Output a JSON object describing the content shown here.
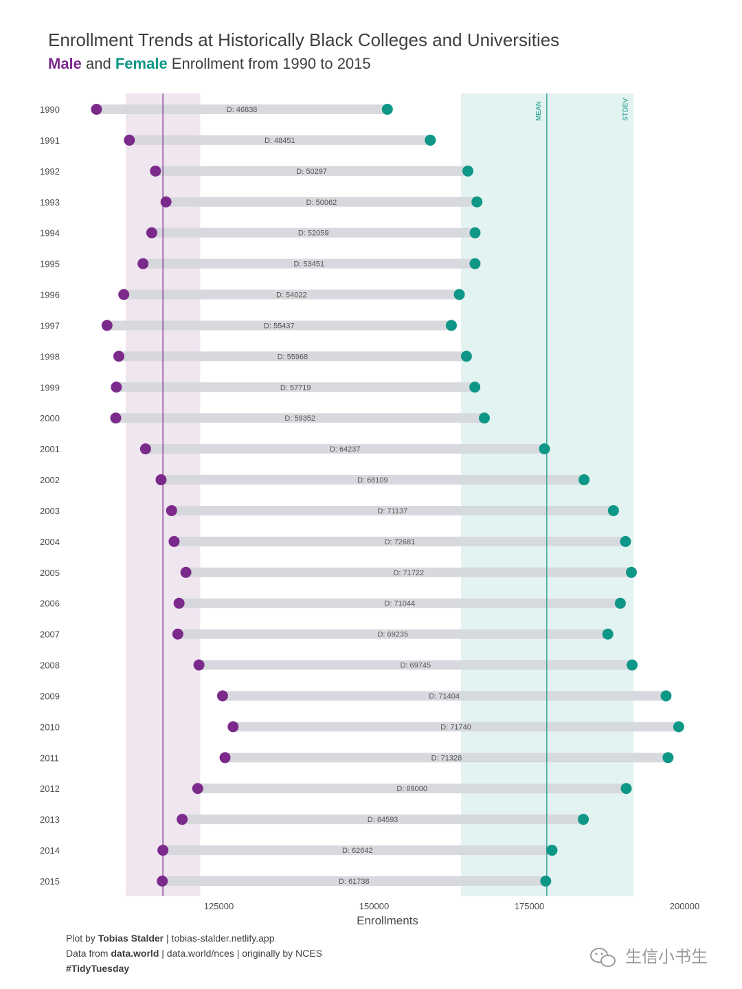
{
  "title": "Enrollment Trends at Historically Black Colleges and Universities",
  "subtitle": {
    "male_word": "Male",
    "and_word": " and ",
    "female_word": "Female",
    "rest": " Enrollment from 1990 to 2015"
  },
  "colors": {
    "male": "#7b2a8b",
    "female": "#0e9686",
    "bar": "#d6d8dd",
    "male_band": "#efe6f0",
    "female_band": "#e3f3f1"
  },
  "chart_data": {
    "type": "dumbbell",
    "xlabel": "Enrollments",
    "xlim": [
      102000,
      206000
    ],
    "x_ticks": [
      125000,
      150000,
      175000,
      200000
    ],
    "diff_prefix": "D:",
    "male_band": {
      "mean": 116000,
      "range": [
        110000,
        122000
      ]
    },
    "female_band": {
      "mean": 177800,
      "range": [
        164000,
        191800
      ],
      "mean_label": "MEAN",
      "stdev_label": "STDEV"
    },
    "years": [
      1990,
      1991,
      1992,
      1993,
      1994,
      1995,
      1996,
      1997,
      1998,
      1999,
      2000,
      2001,
      2002,
      2003,
      2004,
      2005,
      2006,
      2007,
      2008,
      2009,
      2010,
      2011,
      2012,
      2013,
      2014,
      2015
    ],
    "male": [
      105300,
      110600,
      114800,
      116500,
      114200,
      112800,
      109700,
      107000,
      108900,
      108500,
      108400,
      113200,
      115700,
      117400,
      117800,
      119700,
      118600,
      118400,
      121800,
      125600,
      127300,
      126000,
      121600,
      119100,
      116000,
      115900
    ],
    "female": [
      152138,
      159051,
      165097,
      166562,
      166259,
      166251,
      163722,
      162437,
      164868,
      166219,
      167752,
      177437,
      183809,
      188537,
      190481,
      191422,
      189644,
      187635,
      191545,
      197004,
      199040,
      197328,
      190600,
      183693,
      178642,
      177638
    ],
    "diff": [
      46838,
      48451,
      50297,
      50062,
      52059,
      53451,
      54022,
      55437,
      55968,
      57719,
      59352,
      64237,
      68109,
      71137,
      72681,
      71722,
      71044,
      69235,
      69745,
      71404,
      71740,
      71328,
      69000,
      64593,
      62642,
      61738
    ]
  },
  "caption": {
    "line1_prefix": "Plot by ",
    "line1_bold": "Tobias Stalder",
    "line1_rest": " | tobias-stalder.netlify.app",
    "line2_prefix": "Data from ",
    "line2_bold": "data.world",
    "line2_rest": " | data.world/nces | originally by NCES",
    "line3_bold": "#TidyTuesday"
  },
  "watermark": "生信小书生"
}
